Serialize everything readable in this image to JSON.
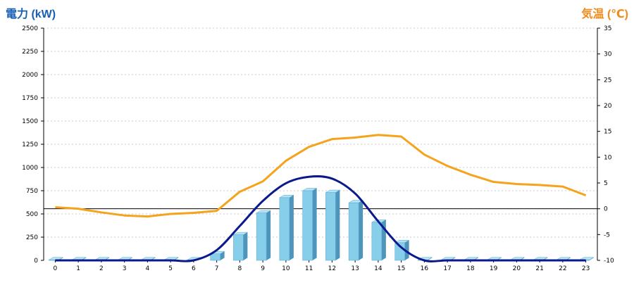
{
  "chart_data": {
    "type": "bar",
    "title_left": "電力 (kW)",
    "title_right": "気温 (℃)",
    "categories": [
      "0",
      "1",
      "2",
      "3",
      "4",
      "5",
      "6",
      "7",
      "8",
      "9",
      "10",
      "11",
      "12",
      "13",
      "14",
      "15",
      "16",
      "17",
      "18",
      "19",
      "20",
      "21",
      "22",
      "23"
    ],
    "y_left": {
      "min": 0,
      "max": 2500,
      "ticks": [
        "0",
        "250",
        "500",
        "750",
        "1000",
        "1250",
        "1500",
        "1750",
        "2000",
        "2250",
        "2500"
      ]
    },
    "y_right": {
      "min": -10,
      "max": 35,
      "ticks": [
        "-10",
        "-5",
        "0",
        "5",
        "10",
        "15",
        "20",
        "25",
        "30",
        "35"
      ]
    },
    "grid": true,
    "series": [
      {
        "kind": "bar",
        "axis": "left",
        "color": "#87ceeb",
        "values": [
          5,
          5,
          5,
          5,
          5,
          5,
          5,
          70,
          275,
          510,
          675,
          750,
          730,
          620,
          410,
          190,
          5,
          5,
          5,
          5,
          5,
          5,
          5,
          5
        ]
      },
      {
        "kind": "line",
        "axis": "left",
        "color": "#0a1a8c",
        "values": [
          0,
          0,
          0,
          0,
          0,
          0,
          0,
          110,
          370,
          640,
          830,
          900,
          880,
          720,
          420,
          140,
          0,
          0,
          0,
          0,
          0,
          0,
          0,
          0
        ]
      },
      {
        "kind": "line",
        "axis": "right",
        "color": "#f5a31c",
        "values": [
          0.3,
          0,
          -0.7,
          -1.3,
          -1.5,
          -1,
          -0.8,
          -0.4,
          3.3,
          5.3,
          9.3,
          12,
          13.5,
          13.8,
          14.3,
          14,
          10.5,
          8.3,
          6.6,
          5.2,
          4.8,
          4.6,
          4.3,
          2.6
        ]
      }
    ]
  }
}
